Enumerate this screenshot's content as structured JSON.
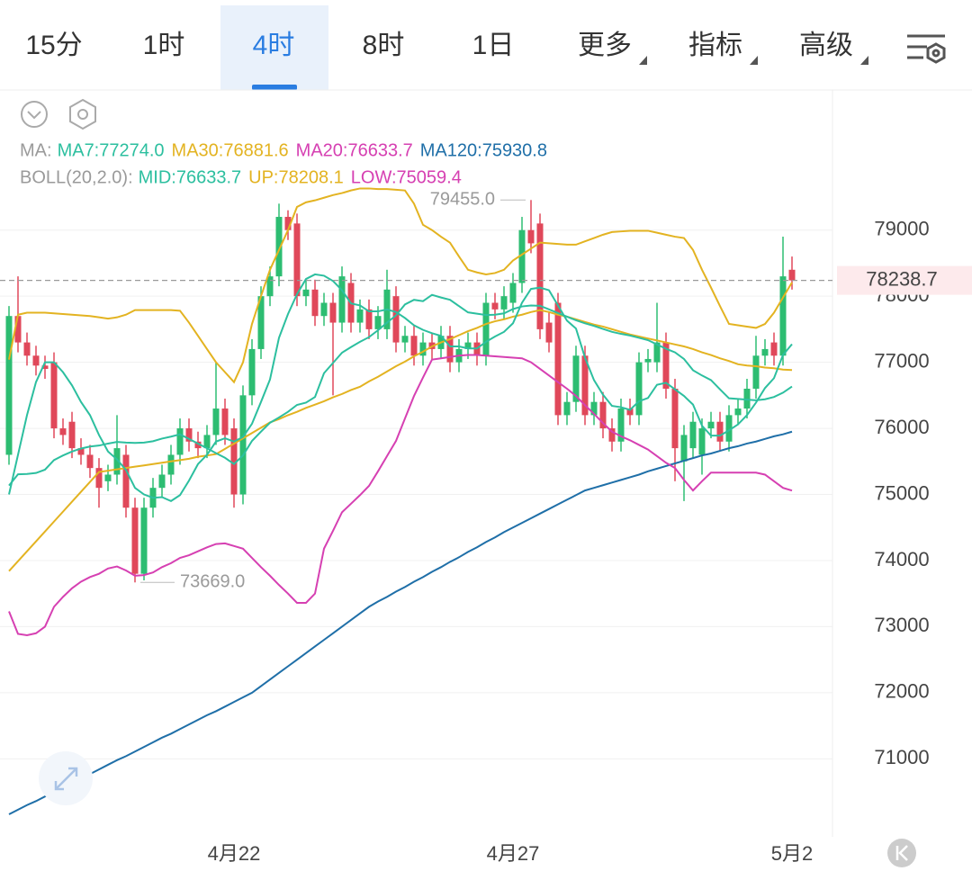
{
  "tabs": [
    {
      "label": "15分"
    },
    {
      "label": "1时"
    },
    {
      "label": "4时",
      "selected": true
    },
    {
      "label": "8时"
    },
    {
      "label": "1日"
    }
  ],
  "menus": [
    "更多",
    "指标",
    "高级"
  ],
  "chart_data": {
    "type": "candlestick",
    "legend_rows": [
      {
        "title": "MA:",
        "items": [
          {
            "text": "MA7:77274.0",
            "color": "#2cbf9f"
          },
          {
            "text": "MA30:76881.6",
            "color": "#e3b321"
          },
          {
            "text": "MA20:76633.7",
            "color": "#d640b2"
          },
          {
            "text": "MA120:75930.8",
            "color": "#1f6fa8"
          }
        ]
      },
      {
        "title": "BOLL(20,2.0):",
        "items": [
          {
            "text": "MID:76633.7",
            "color": "#2cbf9f"
          },
          {
            "text": "UP:78208.1",
            "color": "#e3b321"
          },
          {
            "text": "LOW:75059.4",
            "color": "#d640b2"
          }
        ]
      }
    ],
    "categories": [
      null,
      null,
      null,
      null,
      null,
      null,
      null,
      null,
      null,
      null,
      null,
      null,
      null,
      null,
      null,
      null,
      null,
      null,
      null,
      null,
      null,
      null,
      null,
      null,
      null,
      "4月22",
      null,
      null,
      null,
      null,
      null,
      null,
      null,
      null,
      null,
      null,
      null,
      null,
      null,
      null,
      null,
      null,
      null,
      null,
      null,
      null,
      null,
      null,
      null,
      null,
      null,
      null,
      null,
      null,
      null,
      null,
      "4月27",
      null,
      null,
      null,
      null,
      null,
      null,
      null,
      null,
      null,
      null,
      null,
      null,
      null,
      null,
      null,
      null,
      null,
      null,
      null,
      null,
      null,
      null,
      null,
      null,
      null,
      null,
      null,
      null,
      null,
      null,
      "5月2"
    ],
    "open": [
      75600,
      77700,
      77300,
      77100,
      76950,
      77000,
      76000,
      76100,
      75700,
      75600,
      75400,
      75200,
      75300,
      75600,
      74800,
      73800,
      74800,
      75100,
      75300,
      75600,
      76000,
      75800,
      75700,
      75900,
      76300,
      76000,
      75000,
      76500,
      77200,
      78000,
      78300,
      79200,
      79100,
      78000,
      78100,
      77700,
      77900,
      77600,
      78200,
      77600,
      77800,
      77500,
      77500,
      78000,
      77300,
      77400,
      77100,
      77300,
      77200,
      77400,
      77000,
      77200,
      77300,
      77100,
      77900,
      77800,
      77900,
      78200,
      79000,
      79100,
      77600,
      77900,
      76200,
      76400,
      77100,
      76200,
      76400,
      76000,
      75800,
      76300,
      76200,
      77000,
      77000,
      77300,
      76600,
      75500,
      75700,
      75600,
      76000,
      76100,
      75800,
      76200,
      76300,
      76600,
      77100,
      77300,
      77100,
      78400
    ],
    "high": [
      77850,
      78300,
      77450,
      77250,
      77100,
      77150,
      76150,
      76250,
      75850,
      75750,
      75550,
      75450,
      76200,
      75750,
      74950,
      74950,
      75250,
      75450,
      75750,
      76150,
      76150,
      75950,
      76050,
      77000,
      76450,
      76150,
      76650,
      77350,
      78150,
      78450,
      79400,
      79300,
      79250,
      78250,
      78250,
      78050,
      78050,
      78450,
      78350,
      77950,
      77950,
      77850,
      78400,
      78150,
      77550,
      77550,
      77450,
      77450,
      77550,
      77550,
      77350,
      77450,
      77450,
      78050,
      78050,
      78150,
      78350,
      79200,
      79455,
      79250,
      77750,
      78050,
      76550,
      77250,
      77250,
      76550,
      76550,
      76150,
      76450,
      76450,
      77150,
      77200,
      77900,
      77450,
      76750,
      76050,
      76250,
      76150,
      76250,
      76250,
      76350,
      76450,
      76750,
      77400,
      77350,
      77450,
      78900,
      78600
    ],
    "low": [
      75450,
      77150,
      76950,
      76800,
      76750,
      75850,
      75750,
      75550,
      75450,
      75250,
      74800,
      75050,
      75150,
      74650,
      73669,
      73700,
      74650,
      74950,
      75150,
      75450,
      75650,
      75550,
      75550,
      75750,
      75750,
      74800,
      74850,
      76350,
      77050,
      77850,
      78150,
      78850,
      77850,
      77850,
      77550,
      77550,
      76500,
      77450,
      77450,
      77450,
      77350,
      77350,
      77350,
      77150,
      77150,
      76950,
      76950,
      77050,
      77050,
      76850,
      76850,
      77050,
      76950,
      76950,
      77650,
      77650,
      77750,
      78050,
      78650,
      77350,
      77150,
      76050,
      76050,
      76250,
      76050,
      76050,
      75850,
      75650,
      75650,
      76050,
      76050,
      76850,
      76850,
      76450,
      75200,
      74900,
      75550,
      75300,
      75850,
      75650,
      75650,
      76050,
      76150,
      76450,
      76950,
      76950,
      76950,
      78100
    ],
    "close": [
      77700,
      77300,
      77100,
      76950,
      76900,
      76000,
      75900,
      75700,
      75600,
      75400,
      75100,
      75300,
      75700,
      74800,
      73800,
      74800,
      75100,
      75300,
      75600,
      76000,
      75800,
      75700,
      75900,
      76300,
      75900,
      75000,
      76500,
      77200,
      78000,
      78300,
      79200,
      79000,
      78000,
      78100,
      77700,
      77900,
      77600,
      78300,
      77600,
      77800,
      77500,
      77700,
      78100,
      77300,
      77400,
      77100,
      77300,
      77200,
      77400,
      77000,
      77200,
      77300,
      77100,
      77900,
      77800,
      78000,
      78200,
      79000,
      78800,
      77500,
      77300,
      76200,
      76400,
      77100,
      76200,
      76400,
      76000,
      75800,
      76300,
      76200,
      77000,
      77050,
      77300,
      76600,
      75700,
      75900,
      76100,
      76000,
      76100,
      75800,
      76200,
      76300,
      76600,
      77100,
      77200,
      77100,
      78300,
      78238.7
    ],
    "up_color": "#2dbd72",
    "down_color": "#e0485a",
    "series": [
      {
        "color": "#1f6fa8",
        "values": [
          70160,
          70230,
          70300,
          70360,
          70430,
          70500,
          70570,
          70640,
          70700,
          70770,
          70840,
          70910,
          70980,
          71040,
          71110,
          71180,
          71250,
          71320,
          71380,
          71450,
          71520,
          71590,
          71660,
          71720,
          71790,
          71860,
          71930,
          72000,
          72100,
          72200,
          72300,
          72400,
          72500,
          72600,
          72700,
          72800,
          72900,
          73000,
          73100,
          73200,
          73300,
          73380,
          73450,
          73530,
          73600,
          73680,
          73750,
          73830,
          73900,
          73980,
          74050,
          74130,
          74200,
          74280,
          74350,
          74430,
          74500,
          74570,
          74640,
          74710,
          74780,
          74850,
          74920,
          74990,
          75060,
          75100,
          75140,
          75180,
          75220,
          75260,
          75300,
          75350,
          75390,
          75430,
          75470,
          75510,
          75550,
          75590,
          75620,
          75660,
          75700,
          75730,
          75770,
          75800,
          75840,
          75880,
          75910,
          75950
        ]
      },
      {
        "color": "#e3b321",
        "values": [
          73840,
          73990,
          74140,
          74290,
          74440,
          74590,
          74740,
          74890,
          75040,
          75190,
          75340,
          75360,
          75380,
          75400,
          75420,
          75440,
          75460,
          75480,
          75500,
          75520,
          75540,
          75570,
          75590,
          75610,
          75690,
          75770,
          75850,
          75930,
          76010,
          76090,
          76140,
          76200,
          76250,
          76310,
          76360,
          76410,
          76470,
          76520,
          76580,
          76630,
          76710,
          76780,
          76860,
          76940,
          77010,
          77090,
          77160,
          77240,
          77300,
          77350,
          77410,
          77470,
          77520,
          77580,
          77620,
          77650,
          77690,
          77720,
          77760,
          77790,
          77760,
          77720,
          77690,
          77650,
          77610,
          77570,
          77540,
          77500,
          77460,
          77420,
          77390,
          77360,
          77330,
          77300,
          77270,
          77240,
          77200,
          77150,
          77110,
          77060,
          77020,
          76970,
          76950,
          76940,
          76920,
          76910,
          76890,
          76882
        ]
      },
      {
        "color": "#e3b321",
        "values": [
          77040,
          77720,
          77750,
          77750,
          77750,
          77740,
          77730,
          77720,
          77710,
          77700,
          77680,
          77660,
          77680,
          77720,
          77790,
          77790,
          77790,
          77790,
          77790,
          77780,
          77600,
          77400,
          77200,
          77000,
          76850,
          76700,
          77000,
          77580,
          78000,
          78400,
          78700,
          79000,
          79350,
          79420,
          79450,
          79490,
          79530,
          79560,
          79600,
          79630,
          79630,
          79620,
          79620,
          79610,
          79600,
          79400,
          79080,
          79000,
          78900,
          78810,
          78600,
          78400,
          78360,
          78330,
          78350,
          78400,
          78540,
          78630,
          78720,
          78810,
          78800,
          78790,
          78780,
          78780,
          78830,
          78880,
          78930,
          78970,
          78980,
          78990,
          78990,
          78990,
          78960,
          78930,
          78900,
          78880,
          78700,
          78400,
          78130,
          77850,
          77580,
          77560,
          77540,
          77520,
          77580,
          77750,
          77980,
          78208
        ]
      },
      {
        "color": "#d640b2",
        "values": [
          73230,
          72890,
          72870,
          72900,
          73000,
          73300,
          73450,
          73580,
          73680,
          73750,
          73800,
          73880,
          73910,
          73850,
          73770,
          73780,
          73820,
          73900,
          73960,
          74040,
          74080,
          74140,
          74200,
          74250,
          74260,
          74220,
          74180,
          74040,
          73900,
          73770,
          73630,
          73500,
          73360,
          73360,
          73500,
          74180,
          74450,
          74730,
          74860,
          74990,
          75130,
          75350,
          75580,
          75810,
          76150,
          76490,
          76770,
          77040,
          77060,
          77080,
          77100,
          77110,
          77110,
          77100,
          77090,
          77080,
          77070,
          77060,
          77000,
          76900,
          76800,
          76700,
          76600,
          76490,
          76350,
          76220,
          76080,
          75950,
          75880,
          75820,
          75750,
          75680,
          75580,
          75480,
          75400,
          75220,
          75060,
          75200,
          75330,
          75330,
          75330,
          75330,
          75330,
          75330,
          75300,
          75200,
          75100,
          75059.4
        ]
      },
      {
        "color": "#2cbf9f",
        "values": [
          75135,
          75305,
          75310,
          75325,
          75375,
          75520,
          75590,
          75650,
          75695,
          75725,
          75740,
          75770,
          75795,
          75785,
          75780,
          75785,
          75805,
          75845,
          75875,
          75910,
          75840,
          75770,
          75700,
          75625,
          75555,
          75460,
          75590,
          75810,
          75950,
          76085,
          76165,
          76250,
          76355,
          76390,
          76475,
          76835,
          76990,
          77145,
          77230,
          77310,
          77380,
          77485,
          77600,
          77710,
          77875,
          77945,
          77925,
          78020,
          77980,
          77945,
          77850,
          77755,
          77735,
          77715,
          77720,
          77740,
          77805,
          77845,
          77860,
          77855,
          77800,
          77745,
          77690,
          77635,
          77590,
          77550,
          77505,
          77460,
          77430,
          77405,
          77370,
          77335,
          77270,
          77205,
          77150,
          77050,
          76880,
          76800,
          76730,
          76590,
          76455,
          76445,
          76435,
          76425,
          76440,
          76475,
          76540,
          76633.7
        ]
      },
      {
        "color": "#2cbf9f",
        "values": [
          75000,
          75600,
          76200,
          76700,
          77000,
          77000,
          76850,
          76650,
          76400,
          76200,
          75900,
          75650,
          75530,
          75370,
          75100,
          75000,
          74950,
          74960,
          74900,
          74990,
          75210,
          75460,
          75600,
          75800,
          75850,
          75800,
          75870,
          76070,
          76400,
          76740,
          77370,
          77730,
          78030,
          78260,
          78330,
          78310,
          78230,
          78090,
          77890,
          77860,
          77770,
          77770,
          77800,
          77760,
          77670,
          77560,
          77490,
          77440,
          77400,
          77240,
          77240,
          77210,
          77210,
          77310,
          77390,
          77460,
          77590,
          77900,
          78110,
          78130,
          78090,
          77860,
          77630,
          77510,
          77070,
          76730,
          76510,
          76340,
          76320,
          76280,
          76410,
          76460,
          76660,
          76690,
          76590,
          76490,
          76360,
          76040,
          75890,
          75890,
          75970,
          76060,
          76200,
          76390,
          76610,
          76760,
          77110,
          77274
        ]
      }
    ],
    "ylim": [
      69820,
      81120
    ],
    "yticks": [
      71000,
      72000,
      73000,
      74000,
      75000,
      76000,
      77000,
      78000,
      79000
    ],
    "grid": true,
    "current_price": 78238.7,
    "max_label": "79455.0",
    "min_label": "73669.0"
  }
}
